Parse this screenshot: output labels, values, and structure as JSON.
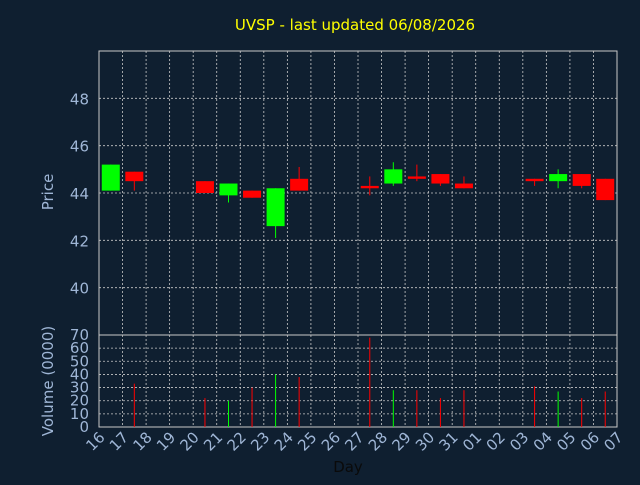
{
  "chart_data": {
    "type": "candlestick",
    "title": "UVSP - last updated 06/08/2026",
    "xlabel": "Day",
    "colors": {
      "background": "#0f1f30",
      "title": "#ffff00",
      "axis_text": "#9fb6d6",
      "frame": "#c8c8c8",
      "grid": "#c8c8c8",
      "up": "#00ff00",
      "down": "#ff0000"
    },
    "x_tick_labels": [
      "16",
      "17",
      "18",
      "19",
      "20",
      "21",
      "22",
      "23",
      "24",
      "25",
      "26",
      "27",
      "28",
      "29",
      "30",
      "31",
      "01",
      "02",
      "03",
      "04",
      "05",
      "06",
      "07"
    ],
    "price_panel": {
      "ylabel": "Price",
      "ylim": [
        38.0,
        50.0
      ],
      "yticks": [
        "40",
        "42",
        "44",
        "46",
        "48"
      ],
      "grid": true
    },
    "volume_panel": {
      "ylabel": "Volume (0000)",
      "ylim": [
        0,
        70
      ],
      "yticks": [
        "0",
        "10",
        "20",
        "30",
        "40",
        "50",
        "60",
        "70"
      ],
      "grid": true
    },
    "candles": [
      {
        "x": 0,
        "open": 44.1,
        "close": 45.2,
        "high": 45.2,
        "low": 44.1,
        "volume": 0
      },
      {
        "x": 1,
        "open": 44.9,
        "close": 44.5,
        "high": 44.9,
        "low": 44.1,
        "volume": 33
      },
      {
        "x": 4,
        "open": 44.5,
        "close": 44.0,
        "high": 44.5,
        "low": 44.0,
        "volume": 22
      },
      {
        "x": 5,
        "open": 43.9,
        "close": 44.4,
        "high": 44.4,
        "low": 43.6,
        "volume": 20
      },
      {
        "x": 6,
        "open": 44.1,
        "close": 43.8,
        "high": 44.1,
        "low": 43.8,
        "volume": 30
      },
      {
        "x": 7,
        "open": 42.6,
        "close": 44.2,
        "high": 44.2,
        "low": 42.1,
        "volume": 40
      },
      {
        "x": 8,
        "open": 44.6,
        "close": 44.1,
        "high": 45.1,
        "low": 44.1,
        "volume": 38
      },
      {
        "x": 11,
        "open": 44.3,
        "close": 44.2,
        "high": 44.7,
        "low": 43.9,
        "volume": 68
      },
      {
        "x": 12,
        "open": 44.4,
        "close": 45.0,
        "high": 45.3,
        "low": 44.3,
        "volume": 28
      },
      {
        "x": 13,
        "open": 44.7,
        "close": 44.6,
        "high": 45.2,
        "low": 44.5,
        "volume": 28
      },
      {
        "x": 14,
        "open": 44.8,
        "close": 44.4,
        "high": 44.8,
        "low": 44.3,
        "volume": 22
      },
      {
        "x": 15,
        "open": 44.4,
        "close": 44.2,
        "high": 44.7,
        "low": 44.2,
        "volume": 28
      },
      {
        "x": 18,
        "open": 44.6,
        "close": 44.5,
        "high": 44.6,
        "low": 44.3,
        "volume": 31
      },
      {
        "x": 19,
        "open": 44.5,
        "close": 44.8,
        "high": 45.0,
        "low": 44.2,
        "volume": 27
      },
      {
        "x": 20,
        "open": 44.8,
        "close": 44.3,
        "high": 44.8,
        "low": 44.2,
        "volume": 22
      },
      {
        "x": 21,
        "open": 44.6,
        "close": 43.7,
        "high": 44.6,
        "low": 43.7,
        "volume": 27
      }
    ]
  }
}
